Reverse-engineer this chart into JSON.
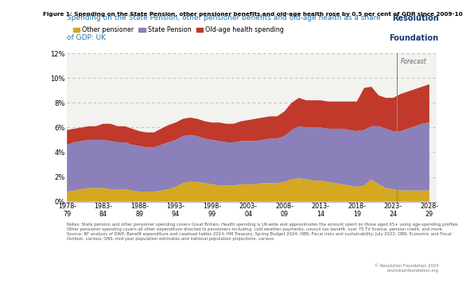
{
  "figure_title": "Figure 1: Spending on the State Pension, other pensioner benefits and old-age health rose by 0.5 per cent of GDP since 2009-10",
  "chart_title_line1": "Spending on the State Pension, other pensioner benefits and old-age health as a share",
  "chart_title_line2": "of GDP: UK",
  "resolution_label_line1": "Resolution",
  "resolution_label_line2": "Foundation",
  "forecast_label": "Forecast",
  "ylim": [
    0,
    12
  ],
  "yticks": [
    0,
    2,
    4,
    6,
    8,
    10,
    12
  ],
  "ytick_labels": [
    "0%",
    "2%",
    "4%",
    "6%",
    "8%",
    "10%",
    "12%"
  ],
  "xtick_labels": [
    "1978-\n79",
    "1983-\n84",
    "1988-\n89",
    "1993-\n94",
    "1998-\n99",
    "2003-\n04",
    "2008-\n09",
    "2013-\n14",
    "2018-\n19",
    "2023-\n24",
    "2028-\n29"
  ],
  "color_other": "#D4A820",
  "color_pension": "#8B80BA",
  "color_health": "#C0392B",
  "bg_color": "#F2F2EE",
  "sidebar_color": "#2B5F8E",
  "notes_text": "Notes: State pension and other pensioner spending covers Great Britain. Health spending is UK-wide and approximates the amount spent on those aged 65+ using age-spending profiles. Other pensioner spending covers all other expenditure directed to pensioners including: cold weather payments, council tax benefit, over 75 TV licence, pension credit, and more.\nSource: RF analysis of DWP, Benefit expenditure and caseload tables 2024; HM Treasury, Spring Budget 2024; OBR, Fiscal risks and sustainability, July 2022; OBR, Economic and Fiscal Outlook, various; ONS, mid-year population estimates and national population projections, various.",
  "years": [
    1978,
    1979,
    1980,
    1981,
    1982,
    1983,
    1984,
    1985,
    1986,
    1987,
    1988,
    1989,
    1990,
    1991,
    1992,
    1993,
    1994,
    1995,
    1996,
    1997,
    1998,
    1999,
    2000,
    2001,
    2002,
    2003,
    2004,
    2005,
    2006,
    2007,
    2008,
    2009,
    2010,
    2011,
    2012,
    2013,
    2014,
    2015,
    2016,
    2017,
    2018,
    2019,
    2020,
    2021,
    2022,
    2023,
    2024,
    2025,
    2026,
    2027,
    2028
  ],
  "other_pensioner": [
    0.8,
    0.9,
    1.0,
    1.1,
    1.1,
    1.1,
    1.0,
    1.0,
    1.0,
    0.9,
    0.8,
    0.8,
    0.8,
    0.9,
    1.0,
    1.2,
    1.5,
    1.6,
    1.6,
    1.5,
    1.4,
    1.3,
    1.3,
    1.3,
    1.4,
    1.4,
    1.4,
    1.5,
    1.5,
    1.5,
    1.6,
    1.8,
    1.9,
    1.8,
    1.7,
    1.7,
    1.6,
    1.5,
    1.4,
    1.3,
    1.2,
    1.3,
    1.8,
    1.4,
    1.1,
    1.0,
    0.9,
    0.9,
    0.9,
    0.9,
    0.9
  ],
  "state_pension": [
    3.8,
    3.9,
    3.9,
    3.9,
    3.9,
    3.9,
    3.9,
    3.8,
    3.8,
    3.7,
    3.7,
    3.6,
    3.6,
    3.7,
    3.8,
    3.8,
    3.8,
    3.8,
    3.7,
    3.6,
    3.6,
    3.6,
    3.5,
    3.5,
    3.5,
    3.5,
    3.5,
    3.5,
    3.6,
    3.6,
    3.7,
    4.0,
    4.2,
    4.2,
    4.3,
    4.3,
    4.3,
    4.4,
    4.5,
    4.5,
    4.5,
    4.5,
    4.3,
    4.7,
    4.8,
    4.7,
    4.8,
    5.0,
    5.2,
    5.4,
    5.5
  ],
  "health_spending": [
    1.2,
    1.1,
    1.1,
    1.1,
    1.1,
    1.3,
    1.4,
    1.3,
    1.3,
    1.3,
    1.2,
    1.2,
    1.2,
    1.3,
    1.4,
    1.4,
    1.4,
    1.4,
    1.4,
    1.4,
    1.4,
    1.5,
    1.5,
    1.5,
    1.6,
    1.7,
    1.8,
    1.8,
    1.8,
    1.8,
    2.0,
    2.2,
    2.3,
    2.2,
    2.2,
    2.2,
    2.2,
    2.2,
    2.2,
    2.3,
    2.4,
    3.4,
    3.2,
    2.5,
    2.5,
    2.7,
    3.0,
    3.0,
    3.0,
    3.0,
    3.1
  ],
  "copyright_text": "© Resolution Foundation 2024\nresolutionfoundation.org"
}
